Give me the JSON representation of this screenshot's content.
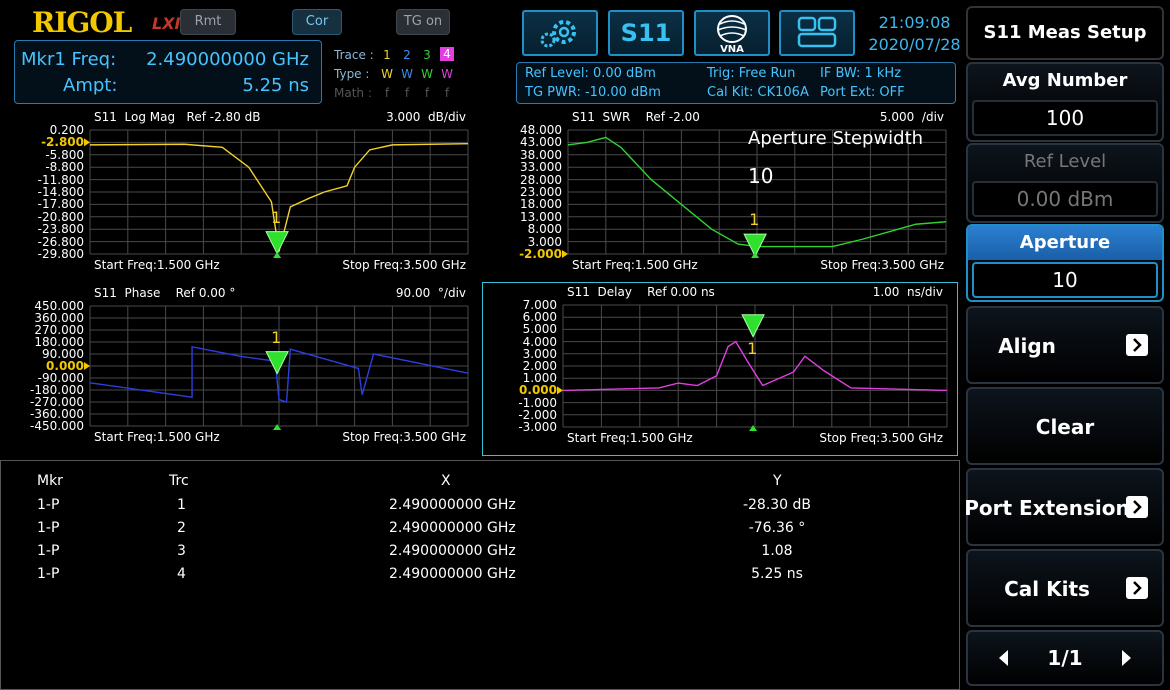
{
  "header": {
    "brand": "RIGOL",
    "lxi": "LXI",
    "pills": [
      "Rmt",
      "Cor",
      "TG on"
    ],
    "buttons": {
      "settings": "settings",
      "s11": "S11",
      "vna": "VNA",
      "layout": "layout"
    },
    "time": "21:09:08",
    "date": "2020/07/28"
  },
  "marker": {
    "freq_label": "Mkr1 Freq:",
    "freq_value": "2.490000000 GHz",
    "ampt_label": "Ampt:",
    "ampt_value": "5.25 ns"
  },
  "traces": {
    "trace_label": "Trace :",
    "type_label": "Type :",
    "math_label": "Math :",
    "trace_nums": [
      "1",
      "2",
      "3",
      "4"
    ],
    "types": [
      "W",
      "W",
      "W",
      "W"
    ],
    "maths": [
      "f",
      "f",
      "f",
      "f"
    ],
    "colors": [
      "#f2d22b",
      "#3b6df0",
      "#2fd22f",
      "#e040e0"
    ]
  },
  "status": {
    "ref_level": "Ref Level: 0.00 dBm",
    "tg_pwr": "TG PWR: -10.00 dBm",
    "trig": "Trig: Free Run",
    "cal_kit": "Cal Kit: CK106A",
    "if_bw": "IF BW: 1 kHz",
    "port_ext": "Port Ext: OFF"
  },
  "panels": [
    {
      "header": "S11  Log Mag   Ref -2.80 dB",
      "scale": "3.000  dB/div",
      "start": "Start Freq:1.500 GHz",
      "stop": "Stop Freq:3.500 GHz",
      "yticks": [
        "0.200",
        "-2.800",
        "-5.800",
        "-8.800",
        "-11.800",
        "-14.800",
        "-17.800",
        "-20.800",
        "-23.800",
        "-26.800",
        "-29.800"
      ],
      "ref_index": 1,
      "color": "#f2d22b",
      "marker": "1"
    },
    {
      "header": "S11  SWR    Ref -2.00",
      "scale": "5.000  /div",
      "start": "Start Freq:1.500 GHz",
      "stop": "Stop Freq:3.500 GHz",
      "yticks": [
        "48.000",
        "43.000",
        "38.000",
        "33.000",
        "28.000",
        "23.000",
        "18.000",
        "13.000",
        "8.000",
        "3.000",
        "-2.000"
      ],
      "ref_index": 10,
      "color": "#2fd22f",
      "marker": "1"
    },
    {
      "header": "S11  Phase    Ref 0.00 °",
      "scale": "90.00  °/div",
      "start": "Start Freq:1.500 GHz",
      "stop": "Stop Freq:3.500 GHz",
      "yticks": [
        "450.000",
        "360.000",
        "270.000",
        "180.000",
        "90.000",
        "0.000",
        "-90.000",
        "-180.000",
        "-270.000",
        "-360.000",
        "-450.000"
      ],
      "ref_index": 5,
      "color": "#2b3fe0",
      "marker": "1"
    },
    {
      "header": "S11  Delay    Ref 0.00 ns",
      "scale": "1.00  ns/div",
      "start": "Start Freq:1.500 GHz",
      "stop": "Stop Freq:3.500 GHz",
      "yticks": [
        "7.000",
        "6.000",
        "5.000",
        "4.000",
        "3.000",
        "2.000",
        "1.000",
        "0.000",
        "-1.000",
        "-2.000",
        "-3.000"
      ],
      "ref_index": 7,
      "color": "#e040e0",
      "marker": "1"
    }
  ],
  "tooltip": {
    "title": "Aperture Stepwidth",
    "value": "10"
  },
  "table": {
    "headers": [
      "Mkr",
      "Trc",
      "X",
      "Y"
    ],
    "rows": [
      [
        "1-P",
        "1",
        "2.490000000 GHz",
        "-28.30 dB"
      ],
      [
        "1-P",
        "2",
        "2.490000000 GHz",
        "-76.36 °"
      ],
      [
        "1-P",
        "3",
        "2.490000000 GHz",
        "1.08"
      ],
      [
        "1-P",
        "4",
        "2.490000000 GHz",
        "5.25 ns"
      ]
    ]
  },
  "softkeys": {
    "title": "S11 Meas Setup",
    "avg_label": "Avg Number",
    "avg_value": "100",
    "ref_label": "Ref Level",
    "ref_value": "0.00 dBm",
    "aper_label": "Aperture Stepwidth",
    "aper_value": "10",
    "align": "Align",
    "clear": "Clear",
    "port_ext": "Port Extension",
    "cal_kits": "Cal Kits",
    "page": "1/1"
  }
}
